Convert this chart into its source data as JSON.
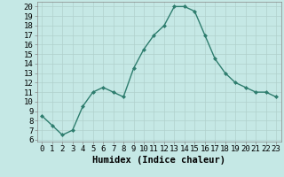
{
  "x": [
    0,
    1,
    2,
    3,
    4,
    5,
    6,
    7,
    8,
    9,
    10,
    11,
    12,
    13,
    14,
    15,
    16,
    17,
    18,
    19,
    20,
    21,
    22,
    23
  ],
  "y": [
    8.5,
    7.5,
    6.5,
    7.0,
    9.5,
    11.0,
    11.5,
    11.0,
    10.5,
    13.5,
    15.5,
    17.0,
    18.0,
    20.0,
    20.0,
    19.5,
    17.0,
    14.5,
    13.0,
    12.0,
    11.5,
    11.0,
    11.0,
    10.5
  ],
  "line_color": "#2e7d6e",
  "marker": "D",
  "marker_size": 2.0,
  "bg_color": "#c5e8e5",
  "grid_color": "#b0d0cc",
  "xlabel": "Humidex (Indice chaleur)",
  "ylabel_ticks": [
    6,
    7,
    8,
    9,
    10,
    11,
    12,
    13,
    14,
    15,
    16,
    17,
    18,
    19,
    20
  ],
  "ylim": [
    5.8,
    20.5
  ],
  "xlim": [
    -0.5,
    23.5
  ],
  "xticks": [
    0,
    1,
    2,
    3,
    4,
    5,
    6,
    7,
    8,
    9,
    10,
    11,
    12,
    13,
    14,
    15,
    16,
    17,
    18,
    19,
    20,
    21,
    22,
    23
  ],
  "xlabel_fontsize": 7.5,
  "tick_fontsize": 6.5,
  "linewidth": 1.0
}
